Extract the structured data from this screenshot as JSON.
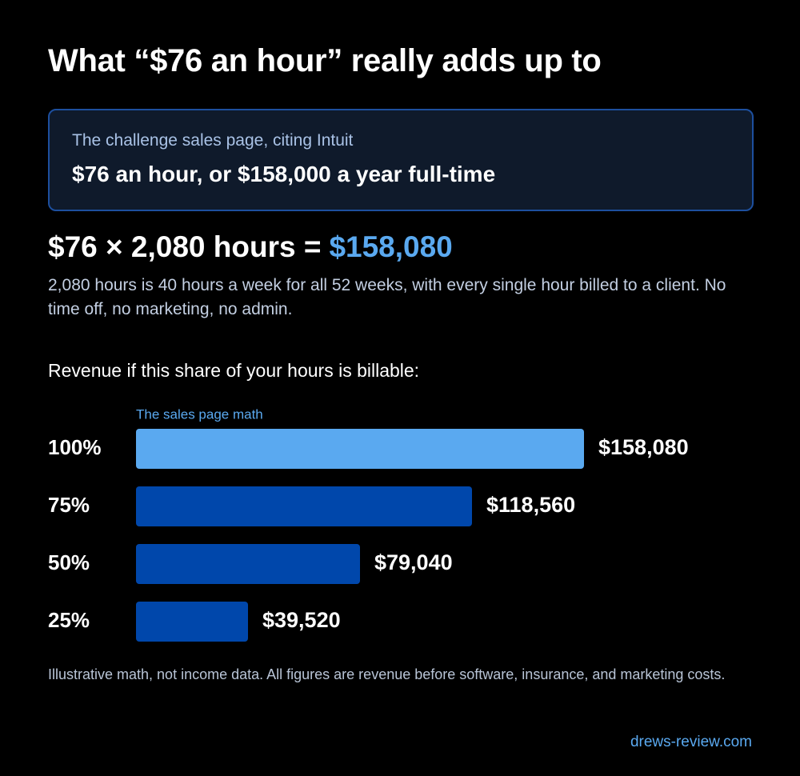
{
  "title": "What “$76 an hour” really adds up to",
  "quote": {
    "label": "The challenge sales page, citing Intuit",
    "text": "$76 an hour, or $158,000 a year full-time"
  },
  "equation": {
    "text": "$76 × 2,080 hours =",
    "result": "$158,080"
  },
  "explanation": "2,080 hours is 40 hours a week for all 52 weeks, with every single hour billed to a client. No time off, no marketing, no admin.",
  "chart_data": {
    "type": "hbar",
    "title": "Revenue if this share of your hours is billable:",
    "annotation": "The sales page math",
    "categories": [
      "100%",
      "75%",
      "50%",
      "25%"
    ],
    "values": [
      158080,
      118560,
      79040,
      39520
    ],
    "value_labels": [
      "$158,080",
      "$118,560",
      "$79,040",
      "$39,520"
    ],
    "colors": [
      "#5aa9f0",
      "#0047ab",
      "#0047ab",
      "#0047ab"
    ]
  },
  "footnote": "Illustrative math, not income data. All figures are revenue before software, insurance, and marketing costs.",
  "site": "drews-review.com"
}
